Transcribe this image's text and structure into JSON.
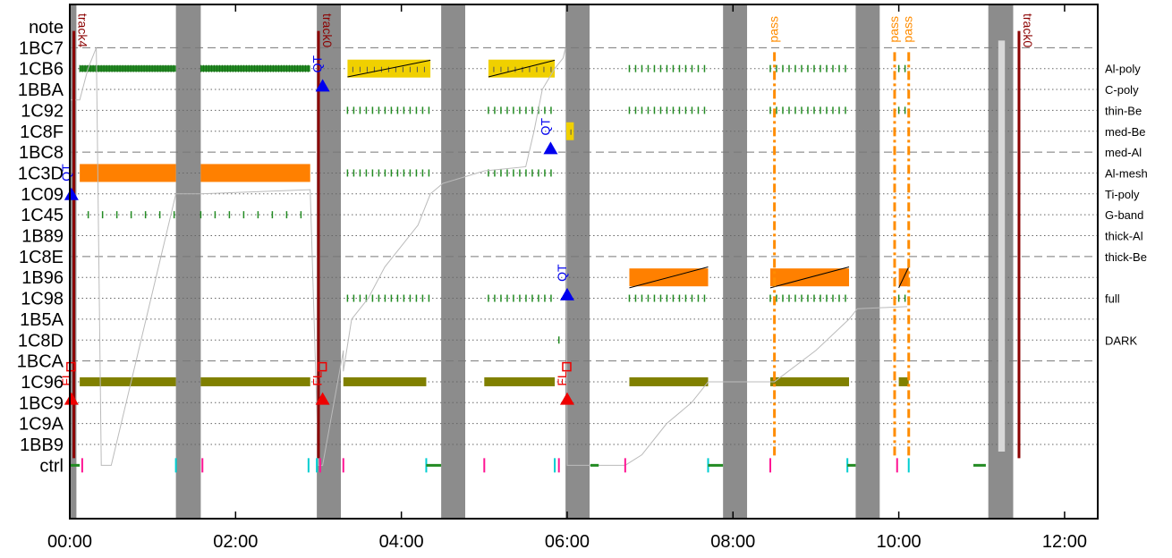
{
  "chart_data": {
    "type": "timeline",
    "title": "",
    "xlabel": "",
    "ylabel": "",
    "x_unit": "hours",
    "xlim": [
      0.0,
      12.4
    ],
    "x_ticks": [
      {
        "value": 0,
        "label": "00:00"
      },
      {
        "value": 2,
        "label": "02:00"
      },
      {
        "value": 4,
        "label": "04:00"
      },
      {
        "value": 6,
        "label": "06:00"
      },
      {
        "value": 8,
        "label": "08:00"
      },
      {
        "value": 10,
        "label": "10:00"
      },
      {
        "value": 12,
        "label": "12:00"
      }
    ],
    "rows": [
      {
        "label": "note",
        "right_label": "",
        "line": "none"
      },
      {
        "label": "1BC7",
        "right_label": "",
        "line": "dashed"
      },
      {
        "label": "1CB6",
        "right_label": "Al-poly",
        "line": "dotted"
      },
      {
        "label": "1BBA",
        "right_label": "C-poly",
        "line": "dotted"
      },
      {
        "label": "1C92",
        "right_label": "thin-Be",
        "line": "dotted"
      },
      {
        "label": "1C8F",
        "right_label": "med-Be",
        "line": "dotted"
      },
      {
        "label": "1BC8",
        "right_label": "med-Al",
        "line": "dashed"
      },
      {
        "label": "1C3D",
        "right_label": "Al-mesh",
        "line": "dotted"
      },
      {
        "label": "1C09",
        "right_label": "Ti-poly",
        "line": "dotted"
      },
      {
        "label": "1C45",
        "right_label": "G-band",
        "line": "dotted"
      },
      {
        "label": "1B89",
        "right_label": "thick-Al",
        "line": "dotted"
      },
      {
        "label": "1C8E",
        "right_label": "thick-Be",
        "line": "dashed"
      },
      {
        "label": "1B96",
        "right_label": "",
        "line": "dotted"
      },
      {
        "label": "1C98",
        "right_label": "full",
        "line": "dotted"
      },
      {
        "label": "1B5A",
        "right_label": "",
        "line": "dotted"
      },
      {
        "label": "1C8D",
        "right_label": "DARK",
        "line": "dotted"
      },
      {
        "label": "1BCA",
        "right_label": "",
        "line": "dashed"
      },
      {
        "label": "1C96",
        "right_label": "",
        "line": "dotted"
      },
      {
        "label": "1BC9",
        "right_label": "",
        "line": "dotted"
      },
      {
        "label": "1C9A",
        "right_label": "",
        "line": "dotted"
      },
      {
        "label": "1BB9",
        "right_label": "",
        "line": "dotted"
      },
      {
        "label": "ctrl",
        "right_label": "",
        "line": "none"
      }
    ],
    "night_bands": [
      [
        0.0,
        0.08
      ],
      [
        1.28,
        1.58
      ],
      [
        2.98,
        3.27
      ],
      [
        4.48,
        4.77
      ],
      [
        5.98,
        6.27
      ],
      [
        7.88,
        8.17
      ],
      [
        9.48,
        9.77
      ],
      [
        11.08,
        11.38
      ]
    ],
    "light_band": {
      "x0": 11.2,
      "x1": 11.28,
      "y_top_row": 1,
      "y_bottom_row": 20
    },
    "tracks": [
      {
        "label": "track4",
        "x": 0.05,
        "color": "#8b0000",
        "to_row": 21
      },
      {
        "label": "track0",
        "x": 3.0,
        "color": "#8b0000",
        "to_row": 21
      },
      {
        "label": "track0",
        "x": 11.45,
        "color": "#8b0000",
        "to_row": 21
      }
    ],
    "pass_lines": [
      {
        "label": "pass",
        "x": 8.5
      },
      {
        "label": "pass",
        "x": 9.95
      },
      {
        "label": "pass",
        "x": 10.12
      }
    ],
    "filled_bars": [
      {
        "row": 2,
        "x0": 0.12,
        "x1": 1.28,
        "color": "#228b22",
        "style": "hatch"
      },
      {
        "row": 2,
        "x0": 1.58,
        "x1": 2.9,
        "color": "#228b22",
        "style": "hatch"
      },
      {
        "row": 2,
        "x0": 3.35,
        "x1": 4.35,
        "color": "#f0d000",
        "style": "yellow"
      },
      {
        "row": 2,
        "x0": 5.05,
        "x1": 5.85,
        "color": "#f0d000",
        "style": "yellow"
      },
      {
        "row": 5,
        "x0": 5.98,
        "x1": 6.08,
        "color": "#f0d000",
        "style": "yellow"
      },
      {
        "row": 7,
        "x0": 0.12,
        "x1": 1.28,
        "color": "#ff8000",
        "style": "solid"
      },
      {
        "row": 7,
        "x0": 1.58,
        "x1": 2.9,
        "color": "#ff8000",
        "style": "solid"
      },
      {
        "row": 12,
        "x0": 6.75,
        "x1": 7.7,
        "color": "#ff8000",
        "style": "orange"
      },
      {
        "row": 12,
        "x0": 8.45,
        "x1": 9.4,
        "color": "#ff8000",
        "style": "orange"
      },
      {
        "row": 12,
        "x0": 10.0,
        "x1": 10.12,
        "color": "#ff8000",
        "style": "orange"
      },
      {
        "row": 17,
        "x0": 0.12,
        "x1": 1.28,
        "color": "#808000",
        "style": "solid"
      },
      {
        "row": 17,
        "x0": 1.58,
        "x1": 2.9,
        "color": "#808000",
        "style": "solid"
      },
      {
        "row": 17,
        "x0": 3.3,
        "x1": 4.3,
        "color": "#808000",
        "style": "solid"
      },
      {
        "row": 17,
        "x0": 5.0,
        "x1": 5.85,
        "color": "#808000",
        "style": "solid"
      },
      {
        "row": 17,
        "x0": 6.75,
        "x1": 7.7,
        "color": "#808000",
        "style": "solid"
      },
      {
        "row": 17,
        "x0": 8.45,
        "x1": 9.4,
        "color": "#808000",
        "style": "solid"
      },
      {
        "row": 17,
        "x0": 10.0,
        "x1": 10.12,
        "color": "#808000",
        "style": "solid"
      }
    ],
    "tick_rows": [
      {
        "row": 2,
        "segments": [
          [
            6.75,
            7.7
          ],
          [
            8.45,
            9.4
          ],
          [
            10.0,
            10.1
          ]
        ]
      },
      {
        "row": 4,
        "segments": [
          [
            3.35,
            4.35
          ],
          [
            5.05,
            5.85
          ],
          [
            6.75,
            7.7
          ],
          [
            8.45,
            9.4
          ],
          [
            10.0,
            10.1
          ]
        ]
      },
      {
        "row": 7,
        "segments": [
          [
            3.35,
            4.35
          ],
          [
            5.05,
            5.85
          ]
        ]
      },
      {
        "row": 9,
        "segments": [
          [
            0.05,
            1.28
          ],
          [
            1.58,
            2.9
          ]
        ]
      },
      {
        "row": 13,
        "segments": [
          [
            3.35,
            4.35
          ],
          [
            5.05,
            5.85
          ],
          [
            6.75,
            7.7
          ],
          [
            8.45,
            9.4
          ],
          [
            10.0,
            10.1
          ]
        ]
      },
      {
        "row": 15,
        "segments": [
          [
            5.9,
            5.95
          ]
        ]
      }
    ],
    "markers": [
      {
        "type": "triangle",
        "color": "blue",
        "x": 0.02,
        "row": 8.0,
        "label": "QT",
        "label_color": "blue"
      },
      {
        "type": "triangle",
        "color": "blue",
        "x": 3.05,
        "row": 2.8,
        "label": "QT",
        "label_color": "blue"
      },
      {
        "type": "triangle",
        "color": "blue",
        "x": 5.8,
        "row": 5.8,
        "label": "QT",
        "label_color": "blue"
      },
      {
        "type": "triangle",
        "color": "blue",
        "x": 6.0,
        "row": 12.8,
        "label": "QT",
        "label_color": "blue"
      },
      {
        "type": "triangle",
        "color": "red",
        "x": 0.02,
        "row": 17.8,
        "label": "FL",
        "label_color": "red"
      },
      {
        "type": "triangle",
        "color": "red",
        "x": 3.05,
        "row": 17.8,
        "label": "FL",
        "label_color": "red"
      },
      {
        "type": "triangle",
        "color": "red",
        "x": 6.0,
        "row": 17.8,
        "label": "FL",
        "label_color": "red"
      }
    ],
    "ctrl_events": [
      {
        "x": 0.0,
        "color": "#228b22",
        "kind": "line",
        "x1": 0.12
      },
      {
        "x": 0.15,
        "color": "#ff1493",
        "kind": "tick"
      },
      {
        "x": 1.28,
        "color": "#00ced1",
        "kind": "tick"
      },
      {
        "x": 1.6,
        "color": "#ff1493",
        "kind": "tick"
      },
      {
        "x": 2.88,
        "color": "#00ced1",
        "kind": "tick"
      },
      {
        "x": 2.98,
        "color": "#00ced1",
        "kind": "tick"
      },
      {
        "x": 3.02,
        "color": "#ff1493",
        "kind": "tick"
      },
      {
        "x": 3.3,
        "color": "#ff1493",
        "kind": "tick"
      },
      {
        "x": 4.3,
        "color": "#00ced1",
        "kind": "tick"
      },
      {
        "x": 4.3,
        "color": "#228b22",
        "kind": "line",
        "x1": 4.48
      },
      {
        "x": 5.0,
        "color": "#ff1493",
        "kind": "tick"
      },
      {
        "x": 5.85,
        "color": "#00ced1",
        "kind": "tick"
      },
      {
        "x": 5.9,
        "color": "#ff1493",
        "kind": "tick"
      },
      {
        "x": 6.28,
        "color": "#228b22",
        "kind": "line",
        "x1": 6.38
      },
      {
        "x": 6.7,
        "color": "#ff1493",
        "kind": "tick"
      },
      {
        "x": 7.7,
        "color": "#00ced1",
        "kind": "tick"
      },
      {
        "x": 7.7,
        "color": "#228b22",
        "kind": "line",
        "x1": 7.88
      },
      {
        "x": 8.45,
        "color": "#ff1493",
        "kind": "tick"
      },
      {
        "x": 9.38,
        "color": "#00ced1",
        "kind": "tick"
      },
      {
        "x": 9.38,
        "color": "#228b22",
        "kind": "line",
        "x1": 9.48
      },
      {
        "x": 9.98,
        "color": "#ff1493",
        "kind": "tick"
      },
      {
        "x": 10.12,
        "color": "#00ced1",
        "kind": "tick"
      },
      {
        "x": 10.9,
        "color": "#228b22",
        "kind": "line",
        "x1": 11.05
      }
    ],
    "gray_track": {
      "color": "#bbbbbb",
      "points": [
        [
          0.0,
          3.5
        ],
        [
          0.12,
          3.5
        ],
        [
          0.22,
          2.0
        ],
        [
          0.32,
          1.0
        ],
        [
          0.38,
          21.0
        ],
        [
          0.5,
          21.0
        ],
        [
          1.28,
          8.0
        ],
        [
          1.58,
          8.0
        ],
        [
          2.9,
          7.8
        ],
        [
          3.0,
          21.0
        ],
        [
          3.05,
          21.0
        ],
        [
          3.3,
          15.5
        ],
        [
          3.3,
          16.5
        ],
        [
          3.4,
          14.0
        ],
        [
          3.6,
          13.0
        ],
        [
          3.8,
          11.5
        ],
        [
          4.0,
          10.5
        ],
        [
          4.2,
          9.5
        ],
        [
          4.35,
          8.0
        ],
        [
          4.5,
          7.5
        ],
        [
          5.0,
          6.9
        ],
        [
          5.5,
          6.7
        ],
        [
          5.6,
          5.0
        ],
        [
          5.7,
          3.0
        ],
        [
          5.85,
          2.0
        ],
        [
          5.95,
          1.5
        ],
        [
          5.98,
          1.0
        ],
        [
          6.0,
          21.0
        ],
        [
          6.3,
          21.0
        ],
        [
          6.7,
          21.0
        ],
        [
          6.9,
          20.5
        ],
        [
          7.2,
          19.0
        ],
        [
          7.5,
          18.0
        ],
        [
          7.7,
          17.0
        ],
        [
          8.5,
          17.0
        ],
        [
          9.0,
          15.5
        ],
        [
          9.4,
          14.0
        ],
        [
          9.5,
          13.5
        ],
        [
          10.1,
          13.4
        ]
      ]
    },
    "diag_lines": [
      {
        "x0": 3.35,
        "y0": 2.4,
        "x1": 4.35,
        "y1": 1.6
      },
      {
        "x0": 5.05,
        "y0": 2.4,
        "x1": 5.85,
        "y1": 1.6
      },
      {
        "x0": 6.75,
        "y0": 12.5,
        "x1": 7.7,
        "y1": 11.5
      },
      {
        "x0": 8.45,
        "y0": 12.5,
        "x1": 9.4,
        "y1": 11.5
      },
      {
        "x0": 10.0,
        "y0": 12.5,
        "x1": 10.12,
        "y1": 11.5
      }
    ]
  }
}
